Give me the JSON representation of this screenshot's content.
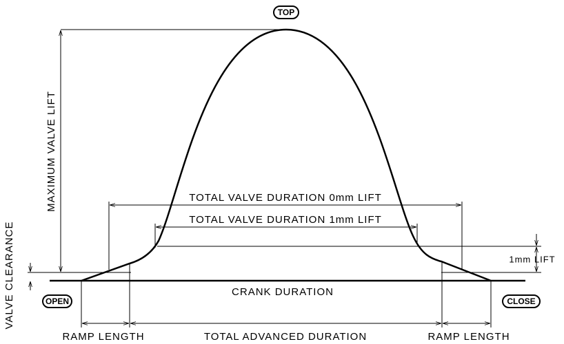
{
  "labels": {
    "top": "TOP",
    "open": "OPEN",
    "close": "CLOSE",
    "max_lift": "MAXIMUM VALVE LIFT",
    "valve_clearance": "VALVE CLEARANCE",
    "duration_0mm": "TOTAL VALVE DURATION 0mm LIFT",
    "duration_1mm": "TOTAL VALVE DURATION 1mm LIFT",
    "lift_1mm": "1mm LIFT",
    "crank_duration": "CRANK DURATION",
    "ramp_left": "RAMP LENGTH",
    "total_advanced": "TOTAL ADVANCED DURATION",
    "ramp_right": "RAMP LENGTH"
  }
}
